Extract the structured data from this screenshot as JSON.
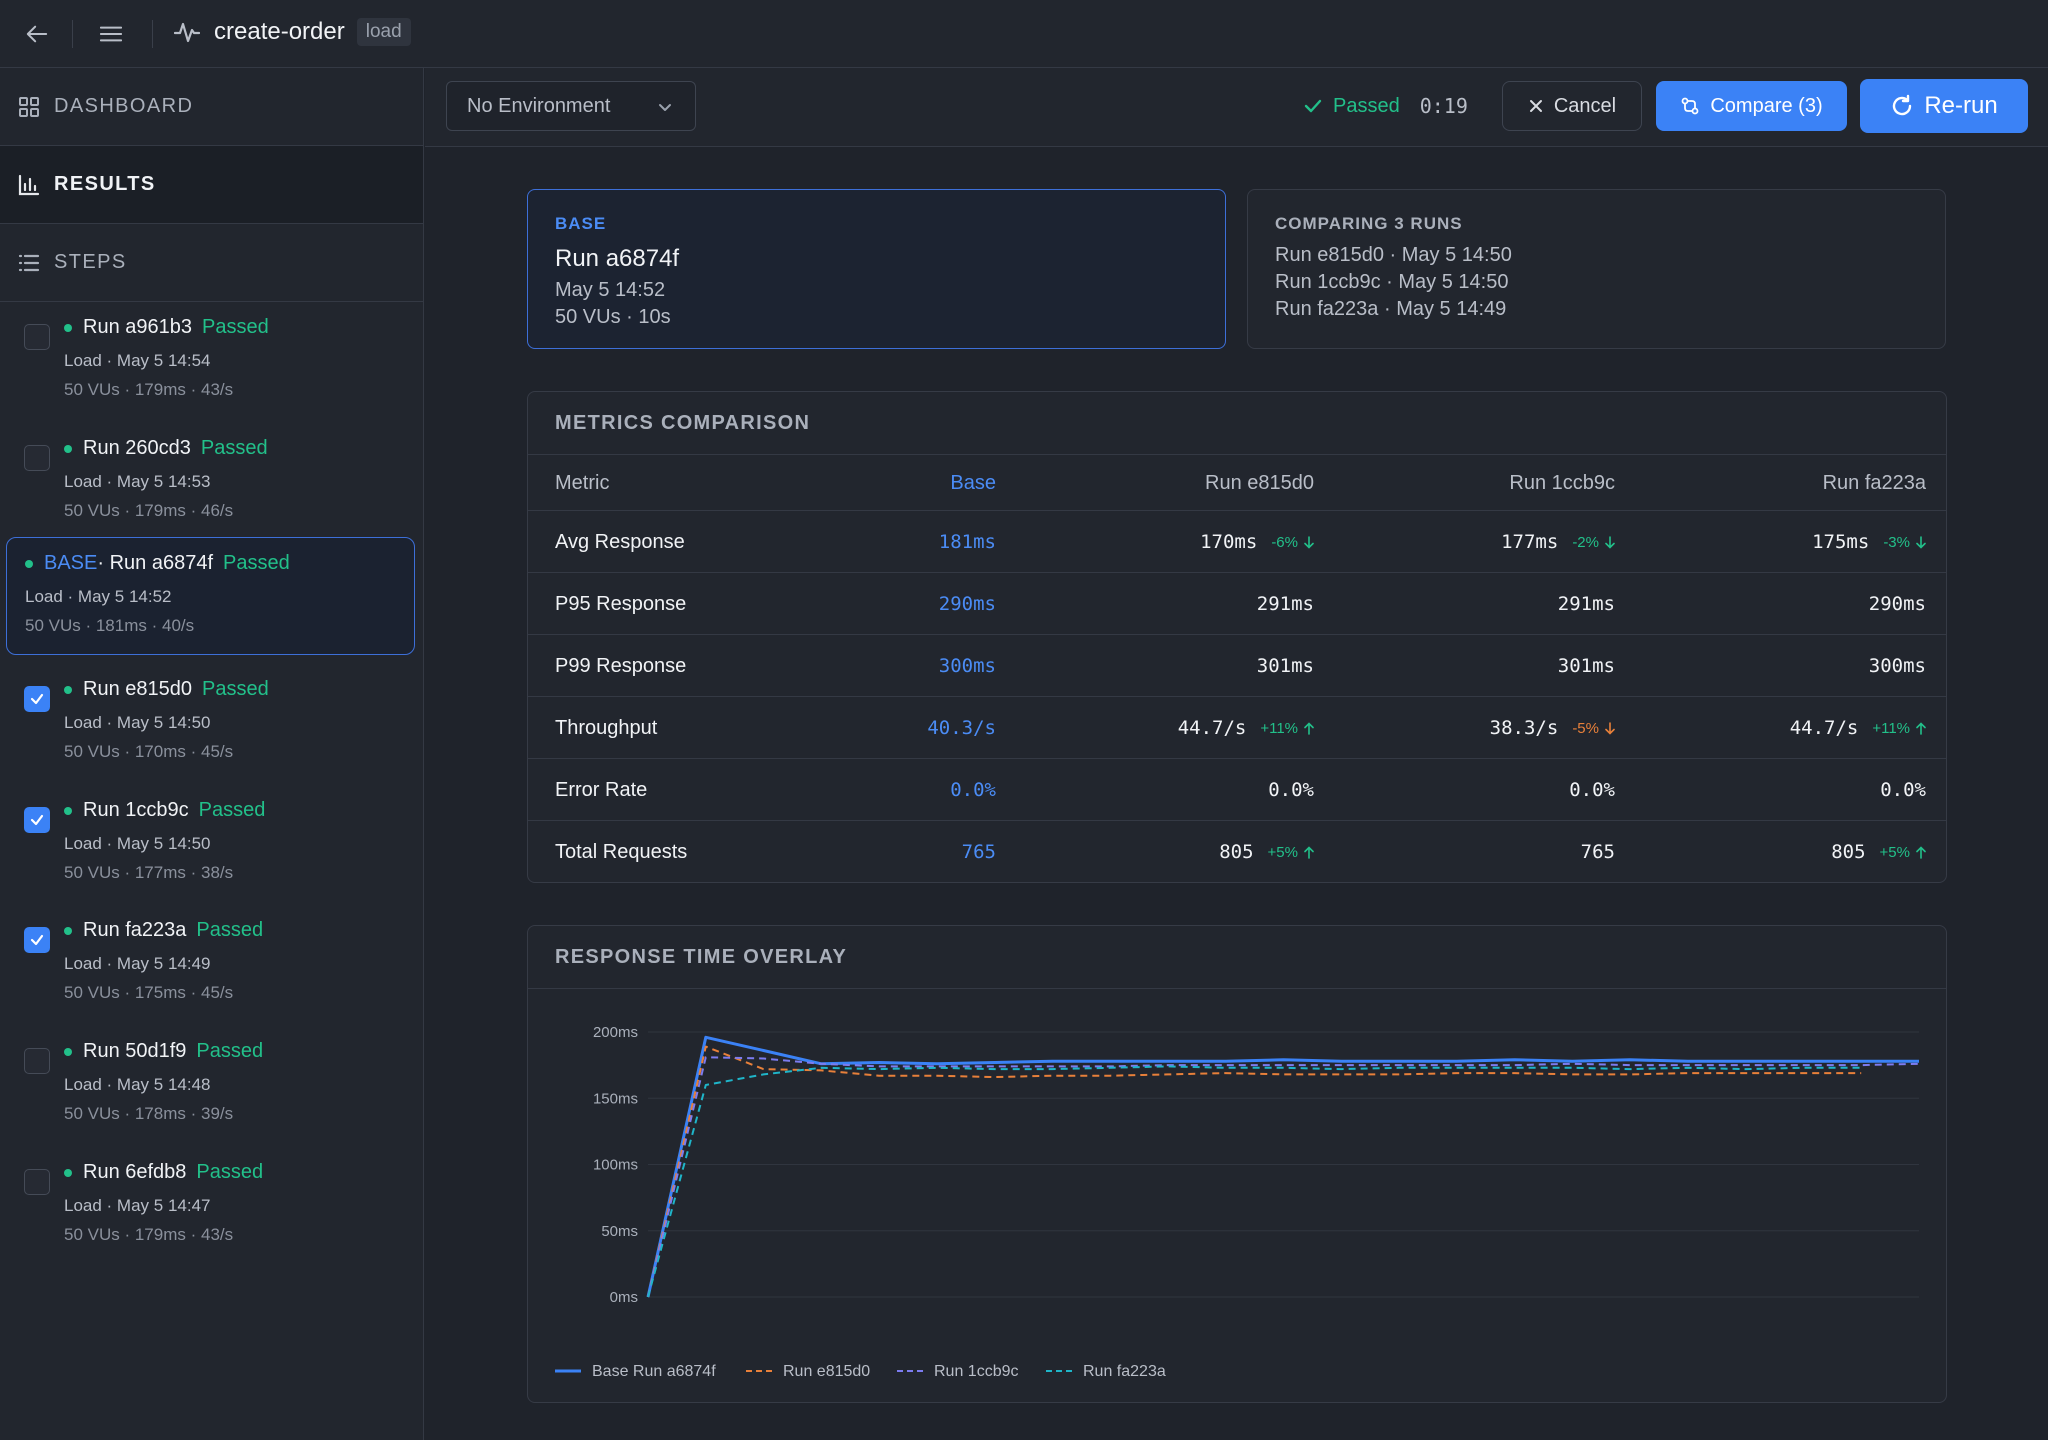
{
  "header": {
    "title": "create-order",
    "badge": "load"
  },
  "nav": [
    {
      "label": "DASHBOARD",
      "icon": "grid-icon"
    },
    {
      "label": "RESULTS",
      "icon": "bar-chart-icon"
    },
    {
      "label": "STEPS",
      "icon": "list-icon"
    }
  ],
  "runs": [
    {
      "title": "Run a961b3",
      "status": "Passed",
      "meta": "Load · May 5 14:54",
      "stats": "50 VUs · 179ms · 43/s",
      "checked": false
    },
    {
      "title": "Run 260cd3",
      "status": "Passed",
      "meta": "Load · May 5 14:53",
      "stats": "50 VUs · 179ms · 46/s",
      "checked": false
    },
    {
      "base_tag": "BASE",
      "title": " · Run a6874f",
      "status": "Passed",
      "meta": "Load · May 5 14:52",
      "stats": "50 VUs · 181ms · 40/s",
      "is_base": true
    },
    {
      "title": "Run e815d0",
      "status": "Passed",
      "meta": "Load · May 5 14:50",
      "stats": "50 VUs · 170ms · 45/s",
      "checked": true
    },
    {
      "title": "Run 1ccb9c",
      "status": "Passed",
      "meta": "Load · May 5 14:50",
      "stats": "50 VUs · 177ms · 38/s",
      "checked": true
    },
    {
      "title": "Run fa223a",
      "status": "Passed",
      "meta": "Load · May 5 14:49",
      "stats": "50 VUs · 175ms · 45/s",
      "checked": true
    },
    {
      "title": "Run 50d1f9",
      "status": "Passed",
      "meta": "Load · May 5 14:48",
      "stats": "50 VUs · 178ms · 39/s",
      "checked": false
    },
    {
      "title": "Run 6efdb8",
      "status": "Passed",
      "meta": "Load · May 5 14:47",
      "stats": "50 VUs · 179ms · 43/s",
      "checked": false
    }
  ],
  "toolbar": {
    "environment": "No Environment",
    "status_label": "Passed",
    "duration": "0:19",
    "cancel_label": "Cancel",
    "compare_label": "Compare (3)",
    "rerun_label": "Re-run"
  },
  "base_card": {
    "eyebrow": "BASE",
    "title": "Run a6874f",
    "date": "May 5 14:52",
    "config": "50 VUs · 10s"
  },
  "compare_card": {
    "eyebrow": "COMPARING 3 RUNS",
    "runs": [
      "Run e815d0 · May 5 14:50",
      "Run 1ccb9c · May 5 14:50",
      "Run fa223a · May 5 14:49"
    ]
  },
  "metrics": {
    "title": "METRICS COMPARISON",
    "columns": [
      "Metric",
      "Base",
      "Run e815d0",
      "Run 1ccb9c",
      "Run fa223a"
    ],
    "rows": [
      {
        "metric": "Avg Response",
        "base": "181ms",
        "cells": [
          {
            "v": "170ms",
            "d": "-6%",
            "dir": "down",
            "tone": "good"
          },
          {
            "v": "177ms",
            "d": "-2%",
            "dir": "down",
            "tone": "good"
          },
          {
            "v": "175ms",
            "d": "-3%",
            "dir": "down",
            "tone": "good"
          }
        ]
      },
      {
        "metric": "P95 Response",
        "base": "290ms",
        "cells": [
          {
            "v": "291ms"
          },
          {
            "v": "291ms"
          },
          {
            "v": "290ms"
          }
        ]
      },
      {
        "metric": "P99 Response",
        "base": "300ms",
        "cells": [
          {
            "v": "301ms"
          },
          {
            "v": "301ms"
          },
          {
            "v": "300ms"
          }
        ]
      },
      {
        "metric": "Throughput",
        "base": "40.3/s",
        "cells": [
          {
            "v": "44.7/s",
            "d": "+11%",
            "dir": "up",
            "tone": "good"
          },
          {
            "v": "38.3/s",
            "d": "-5%",
            "dir": "down",
            "tone": "bad"
          },
          {
            "v": "44.7/s",
            "d": "+11%",
            "dir": "up",
            "tone": "good"
          }
        ]
      },
      {
        "metric": "Error Rate",
        "base": "0.0%",
        "cells": [
          {
            "v": "0.0%"
          },
          {
            "v": "0.0%"
          },
          {
            "v": "0.0%"
          }
        ]
      },
      {
        "metric": "Total Requests",
        "base": "765",
        "cells": [
          {
            "v": "805",
            "d": "+5%",
            "dir": "up",
            "tone": "good"
          },
          {
            "v": "765"
          },
          {
            "v": "805",
            "d": "+5%",
            "dir": "up",
            "tone": "good"
          }
        ]
      }
    ]
  },
  "overlay_title": "RESPONSE TIME OVERLAY",
  "chart_data": {
    "type": "line",
    "ylim": [
      0,
      200
    ],
    "yticks": [
      {
        "v": 0,
        "label": "0ms"
      },
      {
        "v": 50,
        "label": "50ms"
      },
      {
        "v": 100,
        "label": "100ms"
      },
      {
        "v": 150,
        "label": "150ms"
      },
      {
        "v": 200,
        "label": "200ms"
      }
    ],
    "grid": true,
    "legend": "bottom-left",
    "series": [
      {
        "name": "Base Run a6874f",
        "color": "#3b82f6",
        "dash": false,
        "values": [
          0,
          196,
          186,
          176,
          177,
          176,
          177,
          178,
          178,
          178,
          178,
          179,
          178,
          178,
          178,
          179,
          178,
          179,
          178,
          178,
          178,
          178,
          178
        ]
      },
      {
        "name": "Run e815d0",
        "color": "#e8803a",
        "dash": true,
        "values": [
          0,
          189,
          172,
          171,
          167,
          167,
          166,
          167,
          167,
          168,
          169,
          168,
          168,
          168,
          169,
          169,
          168,
          168,
          169,
          169,
          169,
          169
        ]
      },
      {
        "name": "Run 1ccb9c",
        "color": "#7c7cf0",
        "dash": true,
        "values": [
          0,
          181,
          180,
          176,
          174,
          174,
          174,
          174,
          174,
          175,
          175,
          175,
          175,
          175,
          175,
          175,
          176,
          175,
          175,
          175,
          175,
          175,
          176
        ]
      },
      {
        "name": "Run fa223a",
        "color": "#1fb5c9",
        "dash": true,
        "values": [
          0,
          160,
          168,
          173,
          172,
          173,
          172,
          172,
          173,
          174,
          173,
          173,
          172,
          173,
          173,
          173,
          173,
          172,
          173,
          172,
          173,
          173
        ]
      }
    ]
  }
}
